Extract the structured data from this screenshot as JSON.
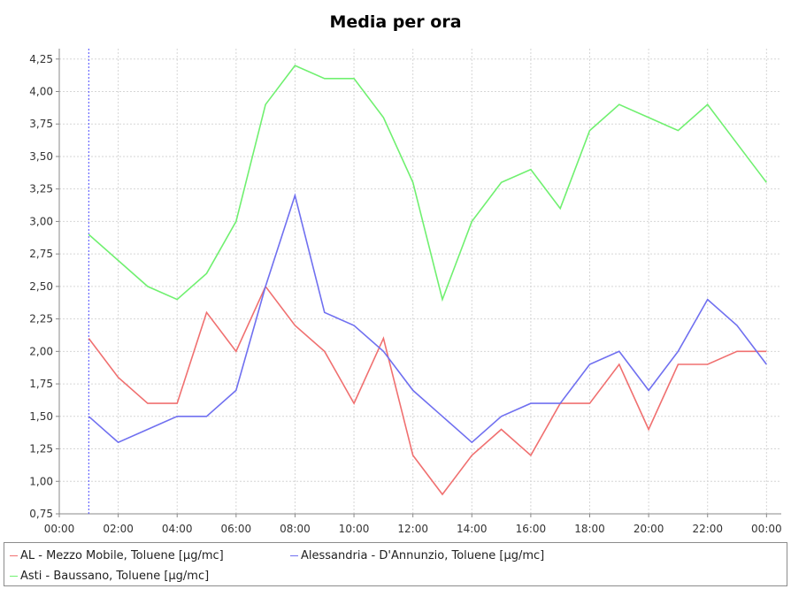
{
  "chart_data": {
    "type": "line",
    "title": "Media per ora",
    "xlabel": "",
    "ylabel": "",
    "x_tick_labels": [
      "00:00",
      "02:00",
      "04:00",
      "06:00",
      "08:00",
      "10:00",
      "12:00",
      "14:00",
      "16:00",
      "18:00",
      "20:00",
      "22:00",
      "00:00"
    ],
    "x_hours": [
      1,
      2,
      3,
      4,
      5,
      6,
      7,
      8,
      9,
      10,
      11,
      12,
      13,
      14,
      15,
      16,
      17,
      18,
      19,
      20,
      21,
      22,
      23,
      24
    ],
    "xlim": [
      0,
      24.5
    ],
    "ylim": [
      0.75,
      4.33
    ],
    "y_tick_labels": [
      "0,75",
      "1,00",
      "1,25",
      "1,50",
      "1,75",
      "2,00",
      "2,25",
      "2,50",
      "2,75",
      "3,00",
      "3,25",
      "3,50",
      "3,75",
      "4,00",
      "4,25"
    ],
    "y_tick_values": [
      0.75,
      1.0,
      1.25,
      1.5,
      1.75,
      2.0,
      2.25,
      2.5,
      2.75,
      3.0,
      3.25,
      3.5,
      3.75,
      4.0,
      4.25
    ],
    "grid": true,
    "crosshair_x": 1,
    "legend_position": "bottom",
    "series": [
      {
        "name": "AL - Mezzo Mobile, Toluene [µg/mc]",
        "color": "#f07070",
        "values": [
          2.1,
          1.8,
          1.6,
          1.6,
          2.3,
          2.0,
          2.5,
          2.2,
          2.0,
          1.6,
          2.1,
          1.2,
          0.9,
          1.2,
          1.4,
          1.2,
          1.6,
          1.6,
          1.9,
          1.4,
          1.9,
          1.9,
          2.0,
          2.0
        ]
      },
      {
        "name": "Alessandria - D'Annunzio, Toluene [µg/mc]",
        "color": "#7070f0",
        "values": [
          1.5,
          1.3,
          1.4,
          1.5,
          1.5,
          1.7,
          2.5,
          3.2,
          2.3,
          2.2,
          2.0,
          1.7,
          1.5,
          1.3,
          1.5,
          1.6,
          1.6,
          1.9,
          2.0,
          1.7,
          2.0,
          2.4,
          2.2,
          1.9
        ]
      },
      {
        "name": "Asti - Baussano, Toluene [µg/mc]",
        "color": "#70f070",
        "values": [
          2.9,
          2.7,
          2.5,
          2.4,
          2.6,
          3.0,
          3.9,
          4.2,
          4.1,
          4.1,
          3.8,
          3.3,
          2.4,
          3.0,
          3.3,
          3.4,
          3.1,
          3.7,
          3.9,
          3.8,
          3.7,
          3.9,
          3.6,
          3.3
        ]
      }
    ]
  }
}
